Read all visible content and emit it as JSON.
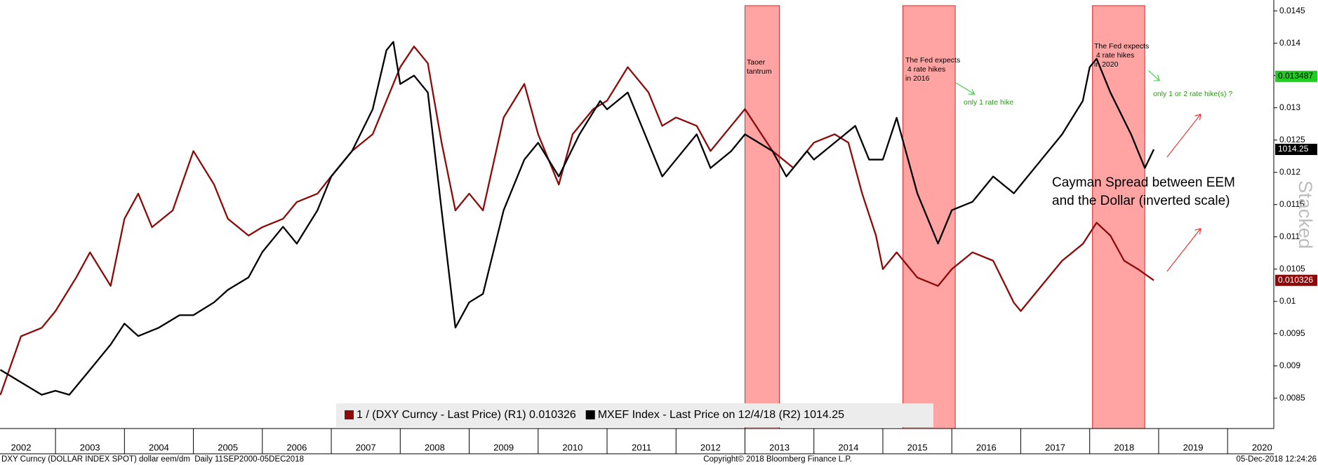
{
  "chart_data": {
    "type": "line",
    "xlim": [
      2002.195,
      2020.67
    ],
    "xticks": [
      2002,
      2003,
      2004,
      2005,
      2006,
      2007,
      2008,
      2009,
      2010,
      2011,
      2012,
      2013,
      2014,
      2015,
      2016,
      2017,
      2018,
      2019,
      2020
    ],
    "ylim": [
      0.00803,
      0.01467
    ],
    "yticks": [
      0.0085,
      0.009,
      0.0095,
      0.01,
      0.0105,
      0.011,
      0.0115,
      0.012,
      0.0125,
      0.013,
      0.0135,
      0.014,
      0.0145
    ],
    "y2lim": [
      187,
      1457
    ],
    "series": [
      {
        "name": "1 / (DXY Curncy - Last Price) (R1) 0.010326",
        "color": "#8c0a0a",
        "axis": "y",
        "x": [
          2002.2,
          2002.5,
          2002.8,
          2003.0,
          2003.3,
          2003.5,
          2003.8,
          2004.0,
          2004.2,
          2004.4,
          2004.7,
          2005.0,
          2005.3,
          2005.5,
          2005.8,
          2006.0,
          2006.3,
          2006.5,
          2006.8,
          2007.0,
          2007.3,
          2007.6,
          2007.9,
          2008.0,
          2008.2,
          2008.4,
          2008.6,
          2008.8,
          2009.0,
          2009.2,
          2009.5,
          2009.8,
          2010.0,
          2010.3,
          2010.5,
          2010.8,
          2011.0,
          2011.3,
          2011.6,
          2011.8,
          2012.0,
          2012.3,
          2012.5,
          2012.8,
          2013.0,
          2013.4,
          2013.7,
          2014.0,
          2014.3,
          2014.5,
          2014.7,
          2014.9,
          2015.0,
          2015.2,
          2015.5,
          2015.8,
          2016.0,
          2016.3,
          2016.6,
          2016.9,
          2017.0,
          2017.3,
          2017.6,
          2017.9,
          2018.1,
          2018.3,
          2018.5,
          2018.7,
          2018.93
        ],
        "values": [
          0.00855,
          0.00946,
          0.00959,
          0.00985,
          0.01037,
          0.01076,
          0.01024,
          0.01128,
          0.01167,
          0.01115,
          0.01141,
          0.01233,
          0.01181,
          0.01128,
          0.01102,
          0.01115,
          0.01128,
          0.01154,
          0.01167,
          0.01194,
          0.01233,
          0.01259,
          0.01337,
          0.01363,
          0.01395,
          0.01369,
          0.01246,
          0.01141,
          0.01167,
          0.01141,
          0.01285,
          0.01337,
          0.01259,
          0.01181,
          0.01259,
          0.01298,
          0.01311,
          0.01363,
          0.01324,
          0.01272,
          0.01285,
          0.01272,
          0.01233,
          0.01272,
          0.01298,
          0.01233,
          0.01207,
          0.01246,
          0.01259,
          0.01246,
          0.01167,
          0.01102,
          0.0105,
          0.01076,
          0.01037,
          0.01024,
          0.0105,
          0.01076,
          0.01063,
          0.00998,
          0.00985,
          0.01024,
          0.01063,
          0.01089,
          0.01122,
          0.01102,
          0.01063,
          0.0105,
          0.010326
        ]
      },
      {
        "name": "MXEF Index - Last Price on 12/4/18 (R2) 1014.25",
        "color": "#000000",
        "axis": "y2",
        "x": [
          2002.2,
          2002.5,
          2002.8,
          2003.0,
          2003.2,
          2003.5,
          2003.8,
          2004.0,
          2004.2,
          2004.5,
          2004.8,
          2005.0,
          2005.3,
          2005.5,
          2005.8,
          2006.0,
          2006.3,
          2006.5,
          2006.8,
          2007.0,
          2007.3,
          2007.6,
          2007.8,
          2007.9,
          2008.0,
          2008.2,
          2008.4,
          2008.6,
          2008.8,
          2009.0,
          2009.2,
          2009.5,
          2009.8,
          2010.0,
          2010.3,
          2010.6,
          2010.9,
          2011.0,
          2011.3,
          2011.6,
          2011.8,
          2012.0,
          2012.3,
          2012.5,
          2012.8,
          2013.0,
          2013.4,
          2013.6,
          2013.9,
          2014.0,
          2014.3,
          2014.6,
          2014.8,
          2015.0,
          2015.2,
          2015.5,
          2015.8,
          2016.0,
          2016.3,
          2016.6,
          2016.9,
          2017.0,
          2017.3,
          2017.6,
          2017.9,
          2018.0,
          2018.1,
          2018.3,
          2018.6,
          2018.8,
          2018.93
        ],
        "values": [
          361,
          324,
          287,
          299,
          287,
          361,
          436,
          498,
          461,
          486,
          523,
          523,
          561,
          598,
          635,
          710,
          785,
          735,
          834,
          934,
          1009,
          1133,
          1308,
          1333,
          1208,
          1233,
          1183,
          834,
          486,
          561,
          586,
          834,
          984,
          1034,
          934,
          1059,
          1158,
          1133,
          1183,
          1034,
          934,
          984,
          1059,
          959,
          1009,
          1059,
          1009,
          934,
          1009,
          984,
          1034,
          1084,
          984,
          984,
          1108,
          884,
          735,
          834,
          859,
          934,
          884,
          909,
          984,
          1059,
          1158,
          1258,
          1283,
          1183,
          1059,
          959,
          1014.25
        ]
      }
    ],
    "shaded_regions": [
      [
        2013.0,
        2013.5
      ],
      [
        2015.29,
        2016.05
      ],
      [
        2018.04,
        2018.8
      ]
    ],
    "reference_tag": {
      "value": 0.013487,
      "color": "#22cc22"
    },
    "annotations": [
      {
        "lines": [
          "Taoer",
          "tantrum"
        ],
        "color": "#000000"
      },
      {
        "lines": [
          "The Fed expects",
          " 4 rate hikes",
          "in 2016"
        ],
        "color": "#000000"
      },
      {
        "lines": [
          "only 1 rate hike"
        ],
        "color": "#2a9a14"
      },
      {
        "lines": [
          "The Fed expects",
          " 4 rate hikes",
          "in 2020"
        ],
        "color": "#000000"
      },
      {
        "lines": [
          "only 1 or 2 rate hike(s) ?"
        ],
        "color": "#2a9a14"
      },
      {
        "lines": [
          "Cayman Spread between EEM",
          "and the Dollar (inverted scale)"
        ],
        "color": "#000000"
      }
    ],
    "watermark": "Stacked",
    "footer": {
      "source": "DXY Curncy (DOLLAR INDEX SPOT) dollar eem/dm  Daily 11SEP2000-05DEC2018",
      "copyright": "Copyright© 2018 Bloomberg Finance L.P.",
      "timestamp": "05-Dec-2018 12:24:26"
    }
  }
}
